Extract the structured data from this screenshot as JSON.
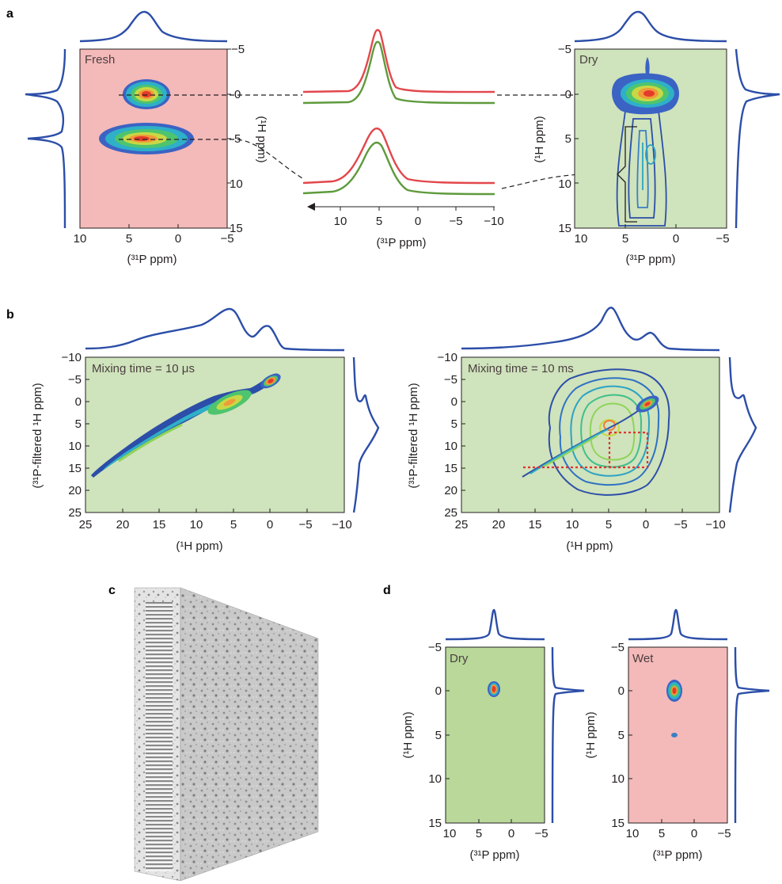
{
  "panel_labels": [
    "a",
    "b",
    "c",
    "d"
  ],
  "colors": {
    "fresh_bg": "#f4b9b9",
    "dry_bg": "#cfe3bc",
    "dry_bg_d": "#b9d89a",
    "wet_bg": "#f4b9b9",
    "projection": "#2c4ea8",
    "trace_red": "#e2474b",
    "trace_green": "#5e9a3c",
    "crosspeak_lines": "#e53030"
  },
  "panel_a": {
    "left": {
      "label": "Fresh",
      "xlabel": "(³¹P ppm)",
      "ylabel": "(¹H ppm)",
      "xticks": [
        "10",
        "5",
        "0",
        "−5"
      ],
      "yticks": [
        "−5",
        "0",
        "5",
        "10",
        "15"
      ]
    },
    "right": {
      "label": "Dry",
      "xlabel": "(³¹P ppm)",
      "ylabel": "(¹H ppm)",
      "xticks": [
        "10",
        "5",
        "0",
        "−5"
      ],
      "yticks": [
        "−5",
        "0",
        "5",
        "10",
        "15"
      ]
    },
    "middle": {
      "xlabel": "(³¹P ppm)",
      "xticks": [
        "10",
        "5",
        "0",
        "−5",
        "−10"
      ]
    }
  },
  "panel_b": {
    "left": {
      "label": "Mixing time = 10 μs",
      "xlabel": "(¹H ppm)",
      "ylabel": "(³¹P-filtered ¹H ppm)",
      "xticks": [
        "25",
        "20",
        "15",
        "10",
        "5",
        "0",
        "−5",
        "−10"
      ],
      "yticks": [
        "−10",
        "−5",
        "0",
        "5",
        "10",
        "15",
        "20",
        "25"
      ]
    },
    "right": {
      "label": "Mixing time = 10 ms",
      "xlabel": "(¹H ppm)",
      "ylabel": "(³¹P-filtered ¹H ppm)",
      "xticks": [
        "25",
        "20",
        "15",
        "10",
        "5",
        "0",
        "−5",
        "−10"
      ],
      "yticks": [
        "−10",
        "−5",
        "0",
        "5",
        "10",
        "15",
        "20",
        "25"
      ]
    }
  },
  "panel_d": {
    "left": {
      "label": "Dry",
      "xlabel": "(³¹P ppm)",
      "ylabel": "(¹H ppm)",
      "xticks": [
        "10",
        "5",
        "0",
        "−5"
      ],
      "yticks": [
        "−5",
        "0",
        "5",
        "10",
        "15"
      ]
    },
    "right": {
      "label": "Wet",
      "xlabel": "(³¹P ppm)",
      "ylabel": "(¹H ppm)",
      "xticks": [
        "10",
        "5",
        "0",
        "−5"
      ],
      "yticks": [
        "−5",
        "0",
        "5",
        "10",
        "15"
      ]
    }
  }
}
